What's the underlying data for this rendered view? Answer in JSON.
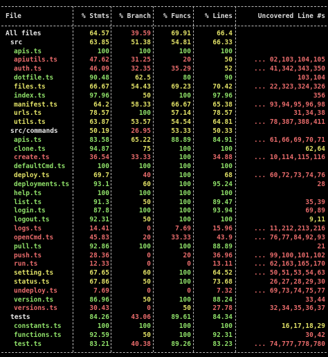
{
  "header": [
    "File",
    "% Stmts",
    "% Branch",
    "% Funcs",
    "% Lines",
    "Uncovered Line #s"
  ],
  "colors": {
    "green": "#8fe069",
    "yellow": "#e0e066",
    "red": "#e86b6b",
    "white": "#e8e8e8"
  },
  "rows": [
    {
      "file": "All files",
      "ind": 0,
      "fc": "yellow",
      "v": [
        "64.57",
        "39.59",
        "69.91",
        "66.4"
      ],
      "c": [
        "yellow",
        "red",
        "yellow",
        "yellow"
      ],
      "u": "",
      "uc": "red"
    },
    {
      "file": "src",
      "ind": 1,
      "fc": "yellow",
      "v": [
        "63.85",
        "51.38",
        "54.81",
        "66.33"
      ],
      "c": [
        "yellow",
        "yellow",
        "yellow",
        "yellow"
      ],
      "u": "",
      "uc": "red"
    },
    {
      "file": "apis.ts",
      "ind": 2,
      "fc": "green",
      "v": [
        "100",
        "100",
        "100",
        "100"
      ],
      "c": [
        "green",
        "green",
        "green",
        "green"
      ],
      "u": "",
      "uc": "red"
    },
    {
      "file": "apiutils.ts",
      "ind": 2,
      "fc": "red",
      "v": [
        "47.62",
        "31.25",
        "20",
        "50"
      ],
      "c": [
        "red",
        "red",
        "red",
        "yellow"
      ],
      "u": "... 02,103,104,105",
      "uc": "red"
    },
    {
      "file": "auth.ts",
      "ind": 2,
      "fc": "red",
      "v": [
        "46.09",
        "32.35",
        "35.29",
        "52"
      ],
      "c": [
        "red",
        "red",
        "red",
        "yellow"
      ],
      "u": "... 41,342,343,350",
      "uc": "red"
    },
    {
      "file": "dotfile.ts",
      "ind": 2,
      "fc": "green",
      "v": [
        "90.48",
        "62.5",
        "80",
        "90"
      ],
      "c": [
        "green",
        "yellow",
        "green",
        "green"
      ],
      "u": "103,104",
      "uc": "red"
    },
    {
      "file": "files.ts",
      "ind": 2,
      "fc": "yellow",
      "v": [
        "66.67",
        "54.43",
        "69.23",
        "70.42"
      ],
      "c": [
        "yellow",
        "yellow",
        "yellow",
        "yellow"
      ],
      "u": "... 22,323,324,326",
      "uc": "red"
    },
    {
      "file": "index.ts",
      "ind": 2,
      "fc": "green",
      "v": [
        "97.96",
        "50",
        "100",
        "97.96"
      ],
      "c": [
        "green",
        "yellow",
        "green",
        "green"
      ],
      "u": "356",
      "uc": "red"
    },
    {
      "file": "manifest.ts",
      "ind": 2,
      "fc": "yellow",
      "v": [
        "64.2",
        "58.33",
        "66.67",
        "65.38"
      ],
      "c": [
        "yellow",
        "yellow",
        "yellow",
        "yellow"
      ],
      "u": "... 93,94,95,96,98",
      "uc": "red"
    },
    {
      "file": "urls.ts",
      "ind": 2,
      "fc": "yellow",
      "v": [
        "78.57",
        "100",
        "57.14",
        "78.57"
      ],
      "c": [
        "yellow",
        "green",
        "yellow",
        "yellow"
      ],
      "u": "31,34,38",
      "uc": "red"
    },
    {
      "file": "utils.ts",
      "ind": 2,
      "fc": "yellow",
      "v": [
        "63.87",
        "53.57",
        "54.54",
        "64.81"
      ],
      "c": [
        "yellow",
        "yellow",
        "yellow",
        "yellow"
      ],
      "u": "... 78,387,388,411",
      "uc": "red"
    },
    {
      "file": "src/commands",
      "ind": 1,
      "fc": "yellow",
      "v": [
        "50.19",
        "26.95",
        "53.33",
        "50.33"
      ],
      "c": [
        "yellow",
        "red",
        "yellow",
        "yellow"
      ],
      "u": "",
      "uc": "red"
    },
    {
      "file": "apis.ts",
      "ind": 2,
      "fc": "green",
      "v": [
        "83.58",
        "65.22",
        "88.89",
        "84.91"
      ],
      "c": [
        "green",
        "yellow",
        "green",
        "green"
      ],
      "u": "... 61,66,69,70,71",
      "uc": "red"
    },
    {
      "file": "clone.ts",
      "ind": 2,
      "fc": "green",
      "v": [
        "94.87",
        "75",
        "100",
        "100"
      ],
      "c": [
        "green",
        "yellow",
        "green",
        "green"
      ],
      "u": "62,64",
      "uc": "yellow"
    },
    {
      "file": "create.ts",
      "ind": 2,
      "fc": "red",
      "v": [
        "36.54",
        "33.33",
        "100",
        "34.88"
      ],
      "c": [
        "red",
        "red",
        "green",
        "red"
      ],
      "u": "... 10,114,115,116",
      "uc": "red"
    },
    {
      "file": "defaultCmd.ts",
      "ind": 2,
      "fc": "green",
      "v": [
        "100",
        "100",
        "100",
        "100"
      ],
      "c": [
        "green",
        "green",
        "green",
        "green"
      ],
      "u": "",
      "uc": "red"
    },
    {
      "file": "deploy.ts",
      "ind": 2,
      "fc": "yellow",
      "v": [
        "69.7",
        "40",
        "100",
        "68"
      ],
      "c": [
        "yellow",
        "red",
        "green",
        "yellow"
      ],
      "u": "... 60,72,73,74,76",
      "uc": "red"
    },
    {
      "file": "deployments.ts",
      "ind": 2,
      "fc": "green",
      "v": [
        "93.1",
        "60",
        "100",
        "95.24"
      ],
      "c": [
        "green",
        "yellow",
        "green",
        "green"
      ],
      "u": "28",
      "uc": "red"
    },
    {
      "file": "help.ts",
      "ind": 2,
      "fc": "green",
      "v": [
        "100",
        "100",
        "100",
        "100"
      ],
      "c": [
        "green",
        "green",
        "green",
        "green"
      ],
      "u": "",
      "uc": "red"
    },
    {
      "file": "list.ts",
      "ind": 2,
      "fc": "green",
      "v": [
        "91.3",
        "50",
        "100",
        "89.47"
      ],
      "c": [
        "green",
        "yellow",
        "green",
        "green"
      ],
      "u": "35,39",
      "uc": "red"
    },
    {
      "file": "login.ts",
      "ind": 2,
      "fc": "green",
      "v": [
        "87.8",
        "100",
        "100",
        "93.94"
      ],
      "c": [
        "green",
        "green",
        "green",
        "green"
      ],
      "u": "69,89",
      "uc": "red"
    },
    {
      "file": "logout.ts",
      "ind": 2,
      "fc": "green",
      "v": [
        "92.31",
        "50",
        "100",
        "100"
      ],
      "c": [
        "green",
        "yellow",
        "green",
        "green"
      ],
      "u": "9,11",
      "uc": "yellow"
    },
    {
      "file": "logs.ts",
      "ind": 2,
      "fc": "red",
      "v": [
        "14.41",
        "0",
        "7.69",
        "15.96"
      ],
      "c": [
        "red",
        "red",
        "red",
        "red"
      ],
      "u": "... 11,212,213,216",
      "uc": "red"
    },
    {
      "file": "openCmd.ts",
      "ind": 2,
      "fc": "red",
      "v": [
        "45.83",
        "20",
        "33.33",
        "43.9"
      ],
      "c": [
        "red",
        "red",
        "red",
        "red"
      ],
      "u": "... 76,77,84,92,93",
      "uc": "red"
    },
    {
      "file": "pull.ts",
      "ind": 2,
      "fc": "green",
      "v": [
        "92.86",
        "100",
        "100",
        "88.89"
      ],
      "c": [
        "green",
        "green",
        "green",
        "green"
      ],
      "u": "21",
      "uc": "red"
    },
    {
      "file": "push.ts",
      "ind": 2,
      "fc": "red",
      "v": [
        "28.36",
        "0",
        "20",
        "36.96"
      ],
      "c": [
        "red",
        "red",
        "red",
        "red"
      ],
      "u": "... 99,100,101,102",
      "uc": "red"
    },
    {
      "file": "run.ts",
      "ind": 2,
      "fc": "red",
      "v": [
        "12.33",
        "0",
        "0",
        "13.11"
      ],
      "c": [
        "red",
        "red",
        "red",
        "red"
      ],
      "u": "... 62,163,165,170",
      "uc": "red"
    },
    {
      "file": "setting.ts",
      "ind": 2,
      "fc": "yellow",
      "v": [
        "67.65",
        "60",
        "100",
        "64.52"
      ],
      "c": [
        "yellow",
        "yellow",
        "green",
        "yellow"
      ],
      "u": "... 50,51,53,54,63",
      "uc": "red"
    },
    {
      "file": "status.ts",
      "ind": 2,
      "fc": "yellow",
      "v": [
        "67.86",
        "50",
        "100",
        "73.68"
      ],
      "c": [
        "yellow",
        "yellow",
        "green",
        "yellow"
      ],
      "u": "26,27,28,29,30",
      "uc": "red"
    },
    {
      "file": "undeploy.ts",
      "ind": 2,
      "fc": "red",
      "v": [
        "7.69",
        "0",
        "0",
        "7.32"
      ],
      "c": [
        "red",
        "red",
        "red",
        "red"
      ],
      "u": "... 69,73,74,75,77",
      "uc": "red"
    },
    {
      "file": "version.ts",
      "ind": 2,
      "fc": "green",
      "v": [
        "86.96",
        "50",
        "100",
        "88.24"
      ],
      "c": [
        "green",
        "yellow",
        "green",
        "green"
      ],
      "u": "33,44",
      "uc": "red"
    },
    {
      "file": "versions.ts",
      "ind": 2,
      "fc": "red",
      "v": [
        "30.43",
        "0",
        "50",
        "27.78"
      ],
      "c": [
        "red",
        "red",
        "yellow",
        "red"
      ],
      "u": "32,34,35,36,37",
      "uc": "red"
    },
    {
      "file": "tests",
      "ind": 1,
      "fc": "yellow",
      "v": [
        "84.26",
        "43.06",
        "89.61",
        "84.34"
      ],
      "c": [
        "green",
        "red",
        "green",
        "green"
      ],
      "u": "",
      "uc": "red"
    },
    {
      "file": "constants.ts",
      "ind": 2,
      "fc": "green",
      "v": [
        "100",
        "100",
        "100",
        "100"
      ],
      "c": [
        "green",
        "green",
        "green",
        "green"
      ],
      "u": "16,17,18,29",
      "uc": "yellow"
    },
    {
      "file": "functions.ts",
      "ind": 2,
      "fc": "green",
      "v": [
        "92.59",
        "50",
        "100",
        "92.31"
      ],
      "c": [
        "green",
        "yellow",
        "green",
        "green"
      ],
      "u": "30,42",
      "uc": "red"
    },
    {
      "file": "test.ts",
      "ind": 2,
      "fc": "green",
      "v": [
        "83.21",
        "40.38",
        "89.26",
        "83.23"
      ],
      "c": [
        "green",
        "red",
        "green",
        "green"
      ],
      "u": "... 74,777,778,780",
      "uc": "red"
    }
  ]
}
